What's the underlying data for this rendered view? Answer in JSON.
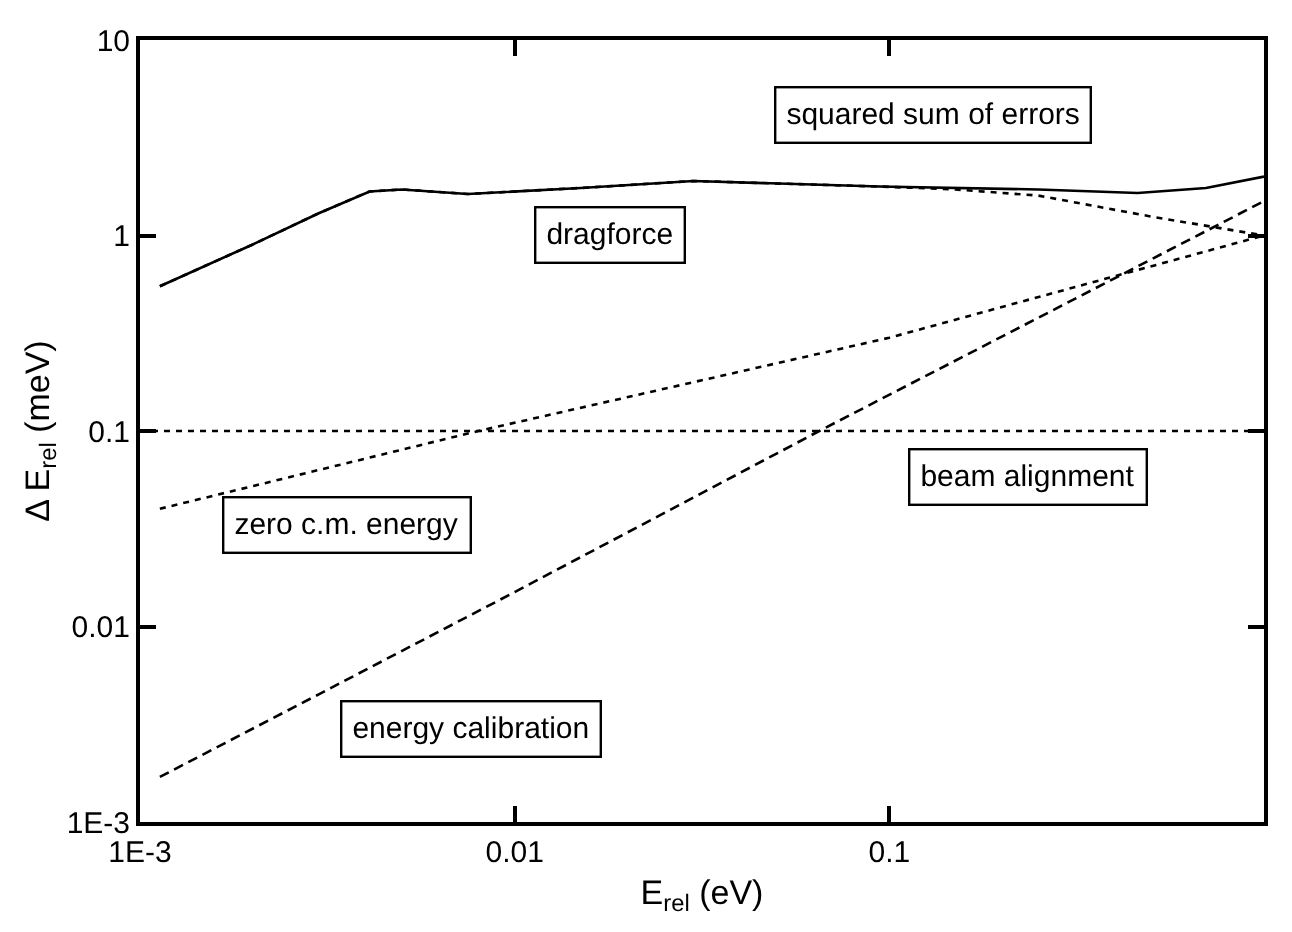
{
  "chart_data": {
    "type": "line",
    "xlabel": "E$_{rel}$ (eV)",
    "ylabel": "Δ E$_{rel}$ (meV)",
    "log": "xy",
    "marker": "none",
    "xlim": [
      0.001,
      1
    ],
    "xticks": [
      {
        "value": 0.001,
        "label": "1E-3"
      },
      0.01,
      0.1,
      {
        "value": 1,
        "label": null
      }
    ],
    "ylim": [
      0.001,
      10
    ],
    "yticks": [
      {
        "value": 0.001,
        "label": "1E-3"
      },
      0.01,
      0.1,
      1,
      10
    ],
    "series": [
      {
        "name": "squared sum of errors",
        "color": "#000000",
        "line_style": "solid",
        "x": [
          0.00113,
          0.002,
          0.003,
          0.0041,
          0.005,
          0.0075,
          0.015,
          0.03,
          0.094,
          0.25,
          0.46,
          0.7,
          1
        ],
        "values": [
          0.55,
          0.9,
          1.3,
          1.68,
          1.72,
          1.63,
          1.75,
          1.9,
          1.78,
          1.72,
          1.65,
          1.75,
          2.0
        ]
      },
      {
        "name": "dragforce",
        "color": "#000000",
        "line_style": "dotted",
        "x": [
          0.00113,
          0.002,
          0.003,
          0.0041,
          0.005,
          0.0075,
          0.015,
          0.03,
          0.094,
          0.15,
          0.25,
          0.5,
          1
        ],
        "values": [
          0.55,
          0.9,
          1.3,
          1.68,
          1.72,
          1.63,
          1.75,
          1.9,
          1.78,
          1.72,
          1.6,
          1.25,
          1.0
        ]
      },
      {
        "name": "zero c.m. energy",
        "color": "#000000",
        "line_style": "dotted",
        "x": [
          0.00113,
          0.008,
          0.1,
          1
        ],
        "values": [
          0.04,
          0.1,
          0.3,
          1.0
        ]
      },
      {
        "name": "energy calibration",
        "color": "#000000",
        "line_style": "dashed",
        "x": [
          0.00113,
          0.003,
          0.01,
          0.065,
          1
        ],
        "values": [
          0.0017,
          0.0045,
          0.015,
          0.1,
          1.5
        ]
      }
    ],
    "ref_lines": [
      {
        "axis": "y",
        "value": 0.1,
        "label": "beam alignment",
        "color": "#000000",
        "line_style": "dotted"
      }
    ]
  }
}
